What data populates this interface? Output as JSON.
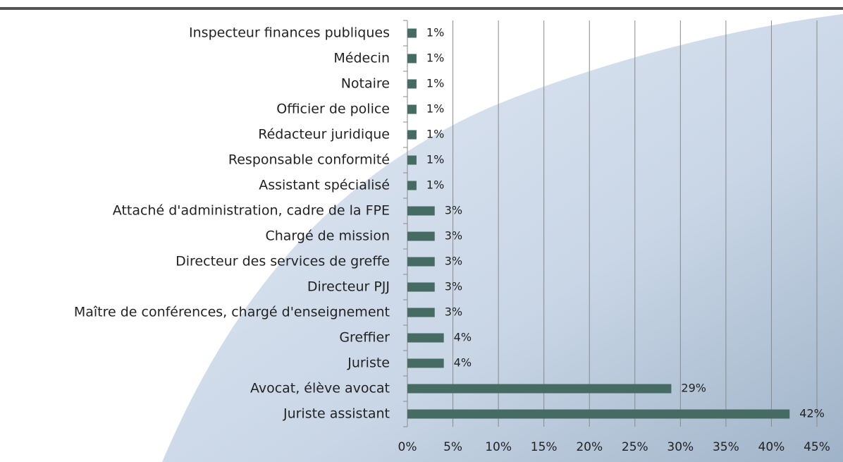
{
  "chart_data": {
    "type": "bar",
    "orientation": "horizontal",
    "categories": [
      "Inspecteur finances publiques",
      "Médecin",
      "Notaire",
      "Officier de police",
      "Rédacteur juridique",
      "Responsable conformité",
      "Assistant spécialisé",
      "Attaché d'administration, cadre de la FPE",
      "Chargé de mission",
      "Directeur des services de greffe",
      "Directeur PJJ",
      "Maître de conférences, chargé d'enseignement",
      "Greffier",
      "Juriste",
      "Avocat, élève avocat",
      "Juriste assistant"
    ],
    "values": [
      1,
      1,
      1,
      1,
      1,
      1,
      1,
      3,
      3,
      3,
      3,
      3,
      4,
      4,
      29,
      42
    ],
    "value_labels": [
      "1%",
      "1%",
      "1%",
      "1%",
      "1%",
      "1%",
      "1%",
      "3%",
      "3%",
      "3%",
      "3%",
      "3%",
      "4%",
      "4%",
      "29%",
      "42%"
    ],
    "color": "#456b63",
    "xlim": [
      0,
      45
    ],
    "xticks": [
      {
        "value": 0,
        "label": "0%"
      },
      {
        "value": 5,
        "label": "5%"
      },
      {
        "value": 10,
        "label": "10%"
      },
      {
        "value": 15,
        "label": "15%"
      },
      {
        "value": 20,
        "label": "20%"
      },
      {
        "value": 25,
        "label": "25%"
      },
      {
        "value": 30,
        "label": "30%"
      },
      {
        "value": 35,
        "label": "35%"
      },
      {
        "value": 40,
        "label": "40%"
      },
      {
        "value": 45,
        "label": "45%"
      }
    ],
    "grid": true
  }
}
